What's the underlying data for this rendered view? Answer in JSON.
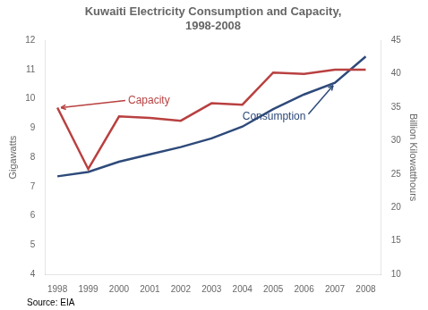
{
  "chart_data": {
    "type": "line",
    "title": "Kuwaiti Electricity Consumption and Capacity,\n1998-2008",
    "x": [
      1998,
      1999,
      2000,
      2001,
      2002,
      2003,
      2004,
      2005,
      2006,
      2007,
      2008
    ],
    "series": [
      {
        "name": "Capacity",
        "color": "#b94040",
        "values": [
          9.7,
          7.6,
          9.4,
          9.35,
          9.25,
          9.85,
          9.8,
          10.9,
          10.85,
          11.0,
          11.0
        ]
      },
      {
        "name": "Consumption",
        "color": "#2e4a7a",
        "values": [
          7.35,
          7.5,
          7.85,
          8.1,
          8.35,
          8.65,
          9.05,
          9.65,
          10.15,
          10.55,
          11.45
        ]
      }
    ],
    "xlim": [
      1997.6,
      2008.5
    ],
    "xticks": [
      1998,
      1999,
      2000,
      2001,
      2002,
      2003,
      2004,
      2005,
      2006,
      2007,
      2008
    ],
    "ylim": [
      4,
      12
    ],
    "yticks": [
      4,
      5,
      6,
      7,
      8,
      9,
      10,
      11,
      12
    ],
    "y2lim": [
      10,
      45
    ],
    "y2ticks": [
      10,
      15,
      20,
      25,
      30,
      35,
      40,
      45
    ],
    "ylabel": "Gigawatts",
    "y2label": "Billion Kilowatthours",
    "source": "Source: EIA",
    "grid": false
  }
}
